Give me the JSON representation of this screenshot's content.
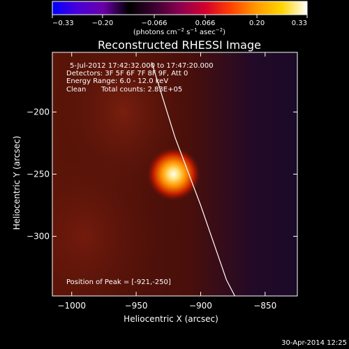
{
  "chart_data": {
    "type": "heatmap",
    "title": "Reconstructed RHESSI Image",
    "xlabel": "Heliocentric X (arcsec)",
    "ylabel": "Heliocentric Y (arcsec)",
    "xlim": [
      -1015,
      -825
    ],
    "ylim": [
      -348,
      -152
    ],
    "x_ticks": [
      -1000,
      -950,
      -900,
      -850
    ],
    "x_tick_labels": [
      "−1000",
      "−950",
      "−900",
      "−850"
    ],
    "y_ticks": [
      -200,
      -250,
      -300
    ],
    "y_tick_labels": [
      "−200",
      "−250",
      "−300"
    ],
    "colorbar": {
      "ticks": [
        -0.33,
        -0.2,
        -0.066,
        0.066,
        0.2,
        0.33
      ],
      "tick_labels": [
        "−0.33",
        "−0.20",
        "−0.066",
        "0.066",
        "0.20",
        "0.33"
      ],
      "units_label": "(photons cm",
      "units_exp1": "−2",
      "units_mid": " s",
      "units_exp2": "−1",
      "units_end": " asec",
      "units_exp3": "−2",
      "units_close": ")",
      "stops": [
        "#0000ff",
        "#4a00d8",
        "#6a00a8",
        "#000000",
        "#3a0030",
        "#8a0050",
        "#d2002e",
        "#ff4000",
        "#ff9a00",
        "#ffd400",
        "#ffffff"
      ]
    },
    "peak": {
      "x": -921,
      "y": -250,
      "peak_value": 0.33
    },
    "sources": [
      {
        "x": -921,
        "y": -250,
        "sigma": 7,
        "amplitude": 0.3
      },
      {
        "x": -960,
        "y": -200,
        "sigma": 45,
        "amplitude": 0.02
      },
      {
        "x": -990,
        "y": -300,
        "sigma": 60,
        "amplitude": 0.02
      }
    ],
    "limb_x_at_y": [
      [
        -938,
        -160
      ],
      [
        -920,
        -220
      ],
      [
        -900,
        -275
      ],
      [
        -880,
        -335
      ],
      [
        -870,
        -355
      ]
    ],
    "annotations": [
      "5-Jul-2012 17:42:32.000 to 17:47:20.000",
      "Detectors: 3F 5F 6F 7F 8F 9F, Att 0",
      "Energy Range: 6.0 - 12.0 keV",
      "Clean",
      "Total counts: 2.83E+05",
      "Position of Peak = [-921,-250]"
    ],
    "footer_date": "30-Apr-2014 12:25"
  }
}
